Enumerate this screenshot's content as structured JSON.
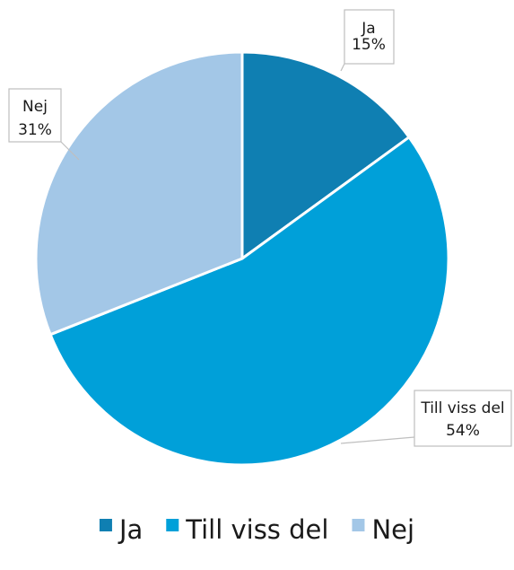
{
  "chart_data": {
    "type": "pie",
    "title": "",
    "categories": [
      "Ja",
      "Till viss del",
      "Nej"
    ],
    "values": [
      15,
      54,
      31
    ],
    "data_labels": [
      {
        "category": "Ja",
        "percent": "15%"
      },
      {
        "category": "Till viss del",
        "percent": "54%"
      },
      {
        "category": "Nej",
        "percent": "31%"
      }
    ],
    "colors": [
      "#0f7fb2",
      "#00a0d9",
      "#a3c7e7"
    ],
    "start_angle": "12 o'clock",
    "direction": "clockwise",
    "legend": {
      "position": "bottom",
      "entries": [
        "Ja",
        "Till viss del",
        "Nej"
      ]
    }
  }
}
